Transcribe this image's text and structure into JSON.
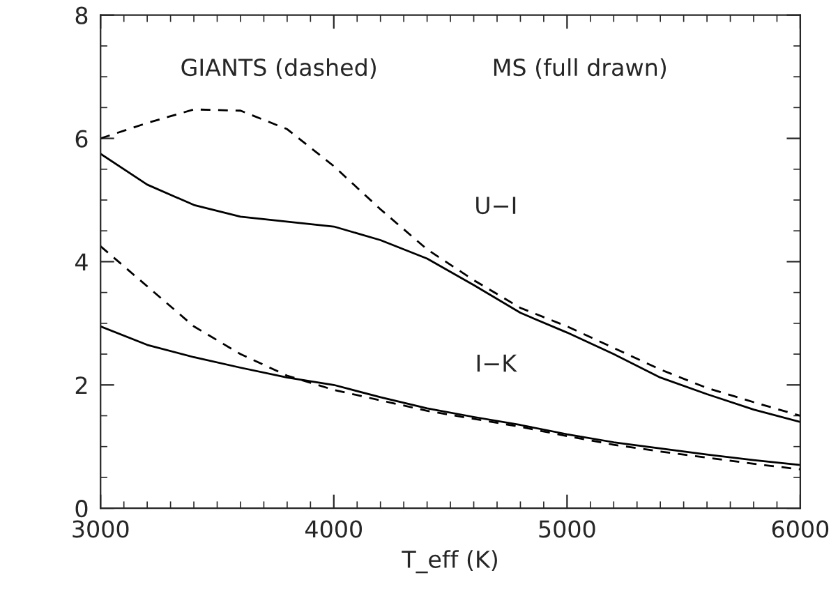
{
  "chart_data": {
    "type": "line",
    "xlabel": "T_eff (K)",
    "xlim": [
      3000,
      6000
    ],
    "xticks": [
      3000,
      4000,
      5000,
      6000
    ],
    "ylim": [
      0,
      8
    ],
    "yticks": [
      0,
      2,
      4,
      6,
      8
    ],
    "grid": false,
    "marker": "none",
    "annotations": [
      "GIANTS (dashed)",
      "MS (full drawn)",
      "U−I",
      "I−K"
    ],
    "series": [
      {
        "color": "#000000",
        "line_style": "solid",
        "x": [
          3000,
          3200,
          3400,
          3600,
          4000,
          4200,
          4400,
          4600,
          4800,
          5000,
          5200,
          5400,
          5600,
          5800,
          6000
        ],
        "values": [
          5.75,
          5.25,
          4.92,
          4.73,
          4.57,
          4.35,
          4.05,
          3.62,
          3.17,
          2.85,
          2.5,
          2.12,
          1.85,
          1.6,
          1.4
        ]
      },
      {
        "color": "#000000",
        "line_style": "dashed",
        "x": [
          3000,
          3200,
          3400,
          3600,
          3800,
          4000,
          4200,
          4400,
          4600,
          4800,
          5000,
          5200,
          5400,
          5600,
          5800,
          6000
        ],
        "values": [
          6.0,
          6.25,
          6.47,
          6.45,
          6.15,
          5.55,
          4.85,
          4.2,
          3.7,
          3.25,
          2.95,
          2.6,
          2.25,
          1.95,
          1.72,
          1.5
        ]
      },
      {
        "color": "#000000",
        "line_style": "solid",
        "x": [
          3000,
          3200,
          3400,
          3600,
          3800,
          4000,
          4200,
          4400,
          4600,
          4800,
          5000,
          5200,
          5400,
          5600,
          5800,
          6000
        ],
        "values": [
          2.95,
          2.65,
          2.45,
          2.28,
          2.12,
          2.0,
          1.8,
          1.62,
          1.48,
          1.35,
          1.2,
          1.07,
          0.97,
          0.87,
          0.78,
          0.7
        ]
      },
      {
        "color": "#000000",
        "line_style": "dashed",
        "x": [
          3000,
          3200,
          3400,
          3600,
          3800,
          4000,
          4200,
          4400,
          4600,
          4800,
          5000,
          5200,
          5400,
          5600,
          5800,
          6000
        ],
        "values": [
          4.25,
          3.6,
          2.95,
          2.5,
          2.15,
          1.92,
          1.75,
          1.58,
          1.45,
          1.32,
          1.17,
          1.03,
          0.92,
          0.82,
          0.72,
          0.63
        ]
      }
    ]
  }
}
